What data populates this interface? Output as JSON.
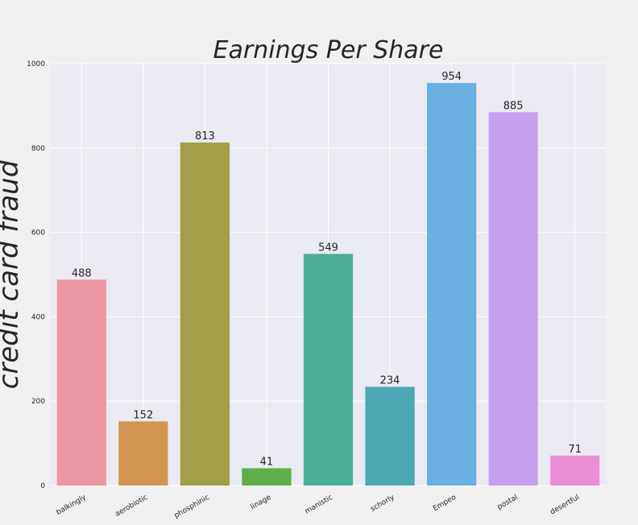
{
  "chart_data": {
    "type": "bar",
    "title": "Earnings Per Share",
    "xlabel": "",
    "ylabel": "credit card fraud",
    "categories": [
      "balkingly",
      "aerobiotic",
      "phosphinic",
      "linage",
      "manistic",
      "schorly",
      "Empeo",
      "postal",
      "desertful"
    ],
    "values": [
      488,
      152,
      813,
      41,
      549,
      234,
      954,
      885,
      71
    ],
    "colors": [
      "#ea96a3",
      "#d09550",
      "#a29f48",
      "#5fae4a",
      "#4aae96",
      "#4ca8b3",
      "#6aafe1",
      "#c4a1ee",
      "#ea8fd5"
    ],
    "ylim": [
      0,
      1000
    ],
    "yticks": [
      0,
      200,
      400,
      600,
      800,
      1000
    ],
    "grid": true,
    "plot_background": "#eaeaf2",
    "page_background": "#f0f0f0"
  }
}
